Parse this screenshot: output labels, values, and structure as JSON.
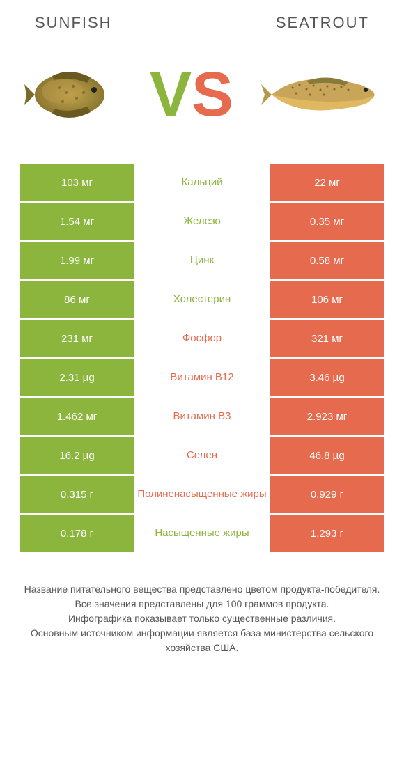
{
  "colors": {
    "left": "#8bb53c",
    "right": "#e66a4e",
    "text": "#555555",
    "white": "#ffffff"
  },
  "header": {
    "left_title": "SUNFISH",
    "right_title": "SEATROUT"
  },
  "vs": {
    "v": "V",
    "s": "S"
  },
  "rows": [
    {
      "left": "103 мг",
      "label": "Кальций",
      "right": "22 мг",
      "winner": "left"
    },
    {
      "left": "1.54 мг",
      "label": "Железо",
      "right": "0.35 мг",
      "winner": "left"
    },
    {
      "left": "1.99 мг",
      "label": "Цинк",
      "right": "0.58 мг",
      "winner": "left"
    },
    {
      "left": "86 мг",
      "label": "Холестерин",
      "right": "106 мг",
      "winner": "left"
    },
    {
      "left": "231 мг",
      "label": "Фосфор",
      "right": "321 мг",
      "winner": "right"
    },
    {
      "left": "2.31 µg",
      "label": "Витамин B12",
      "right": "3.46 µg",
      "winner": "right"
    },
    {
      "left": "1.462 мг",
      "label": "Витамин B3",
      "right": "2.923 мг",
      "winner": "right"
    },
    {
      "left": "16.2 µg",
      "label": "Селен",
      "right": "46.8 µg",
      "winner": "right"
    },
    {
      "left": "0.315 г",
      "label": "Полиненасыщенные жиры",
      "right": "0.929 г",
      "winner": "right"
    },
    {
      "left": "0.178 г",
      "label": "Насыщенные жиры",
      "right": "1.293 г",
      "winner": "left"
    }
  ],
  "footer": {
    "line1": "Название питательного вещества представлено цветом продукта-победителя.",
    "line2": "Все значения представлены для 100 граммов продукта.",
    "line3": "Инфографика показывает только существенные различия.",
    "line4": "Основным источником информации является база министерства сельского хозяйства США."
  }
}
